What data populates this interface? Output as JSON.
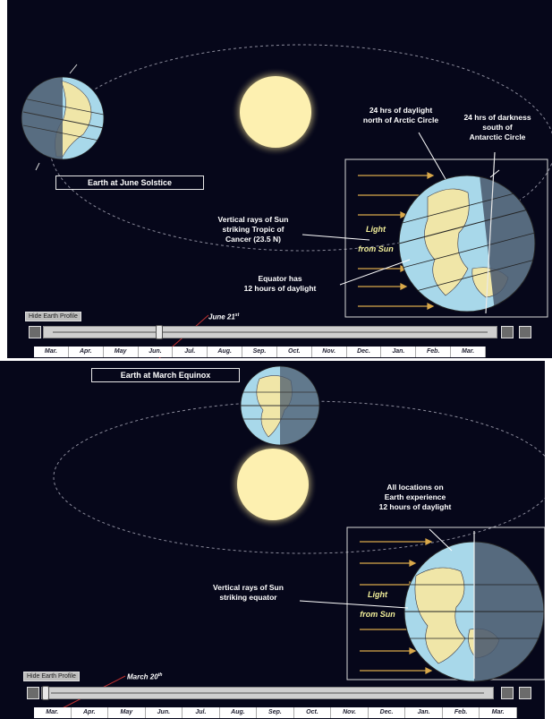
{
  "top": {
    "earth_label": "Earth at June Solstice",
    "arctic_note": [
      "24 hrs of daylight",
      "north of Arctic Circle"
    ],
    "antarctic_note": [
      "24 hrs of darkness",
      "south of",
      "Antarctic Circle"
    ],
    "rays_note": [
      "Vertical rays of Sun",
      "striking Tropic of",
      "Cancer (23.5 N)"
    ],
    "light_label": "Light",
    "from_sun_label": "from Sun",
    "equator_note": [
      "Equator has",
      "12 hours of daylight"
    ],
    "hide_button": "Hide Earth Profile",
    "date": "June 21",
    "date_suffix": "st",
    "slider_position": 0.25,
    "months": [
      "Mar.",
      "Apr.",
      "May",
      "Jun.",
      "Jul.",
      "Aug.",
      "Sep.",
      "Oct.",
      "Nov.",
      "Dec.",
      "Jan.",
      "Feb.",
      "Mar."
    ]
  },
  "bottom": {
    "earth_label": "Earth at March Equinox",
    "all_locations_note": [
      "All locations on",
      "Earth experience",
      "12 hours of daylight"
    ],
    "rays_note": [
      "Vertical rays of Sun",
      "striking equator"
    ],
    "light_label": "Light",
    "from_sun_label": "from Sun",
    "hide_button": "Hide Earth Profile",
    "date": "March 20",
    "date_suffix": "th",
    "slider_position": 0.0,
    "months": [
      "Mar.",
      "Apr.",
      "May",
      "Jun.",
      "Jul.",
      "Aug.",
      "Sep.",
      "Oct.",
      "Nov.",
      "Dec.",
      "Jan.",
      "Feb.",
      "Mar."
    ]
  },
  "colors": {
    "background": "#06071a",
    "sun": "#fdf0b0",
    "ocean": "#a8d8ea",
    "land": "#f0e6a8",
    "night": "#4a5a6e",
    "ray": "#d9a84a",
    "orbit": "#8a8a9a"
  }
}
